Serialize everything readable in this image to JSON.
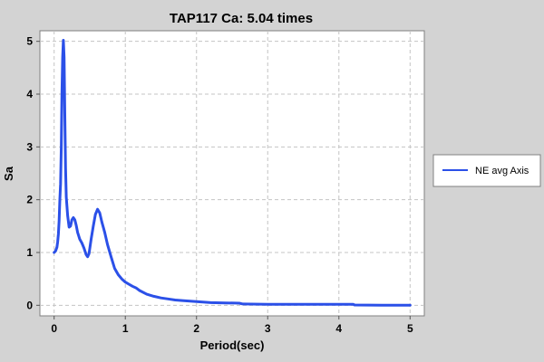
{
  "chart_data": {
    "type": "line",
    "title": "TAP117 Ca: 5.04 times",
    "xlabel": "Period(sec)",
    "ylabel": "Sa",
    "xlim": [
      -0.2,
      5.2
    ],
    "ylim": [
      -0.2,
      5.2
    ],
    "xticks": [
      0,
      1,
      2,
      3,
      4,
      5
    ],
    "yticks": [
      0,
      1,
      2,
      3,
      4,
      5
    ],
    "grid": true,
    "legend_position": "right",
    "series": [
      {
        "name": "NE avg Axis",
        "color": "#2b50e8",
        "points": [
          [
            0.0,
            1.0
          ],
          [
            0.02,
            1.03
          ],
          [
            0.04,
            1.1
          ],
          [
            0.05,
            1.2
          ],
          [
            0.06,
            1.35
          ],
          [
            0.07,
            1.6
          ],
          [
            0.08,
            2.0
          ],
          [
            0.09,
            2.3
          ],
          [
            0.1,
            3.0
          ],
          [
            0.11,
            4.0
          ],
          [
            0.12,
            4.7
          ],
          [
            0.13,
            5.02
          ],
          [
            0.14,
            4.7
          ],
          [
            0.15,
            3.6
          ],
          [
            0.16,
            2.6
          ],
          [
            0.17,
            2.05
          ],
          [
            0.19,
            1.7
          ],
          [
            0.21,
            1.48
          ],
          [
            0.23,
            1.5
          ],
          [
            0.25,
            1.62
          ],
          [
            0.27,
            1.66
          ],
          [
            0.29,
            1.62
          ],
          [
            0.31,
            1.52
          ],
          [
            0.33,
            1.38
          ],
          [
            0.36,
            1.25
          ],
          [
            0.39,
            1.18
          ],
          [
            0.42,
            1.08
          ],
          [
            0.45,
            0.96
          ],
          [
            0.47,
            0.92
          ],
          [
            0.49,
            0.98
          ],
          [
            0.52,
            1.25
          ],
          [
            0.55,
            1.5
          ],
          [
            0.58,
            1.72
          ],
          [
            0.61,
            1.82
          ],
          [
            0.64,
            1.75
          ],
          [
            0.67,
            1.58
          ],
          [
            0.71,
            1.38
          ],
          [
            0.75,
            1.15
          ],
          [
            0.8,
            0.92
          ],
          [
            0.85,
            0.7
          ],
          [
            0.9,
            0.58
          ],
          [
            0.95,
            0.5
          ],
          [
            1.0,
            0.44
          ],
          [
            1.05,
            0.4
          ],
          [
            1.1,
            0.36
          ],
          [
            1.15,
            0.33
          ],
          [
            1.2,
            0.28
          ],
          [
            1.3,
            0.21
          ],
          [
            1.4,
            0.17
          ],
          [
            1.5,
            0.14
          ],
          [
            1.6,
            0.12
          ],
          [
            1.7,
            0.1
          ],
          [
            1.8,
            0.09
          ],
          [
            2.0,
            0.07
          ],
          [
            2.2,
            0.05
          ],
          [
            2.4,
            0.045
          ],
          [
            2.6,
            0.04
          ],
          [
            2.65,
            0.025
          ],
          [
            3.0,
            0.02
          ],
          [
            3.5,
            0.02
          ],
          [
            4.0,
            0.02
          ],
          [
            4.2,
            0.02
          ],
          [
            4.22,
            0.005
          ],
          [
            4.6,
            0.0
          ],
          [
            5.0,
            0.0
          ]
        ]
      }
    ]
  }
}
